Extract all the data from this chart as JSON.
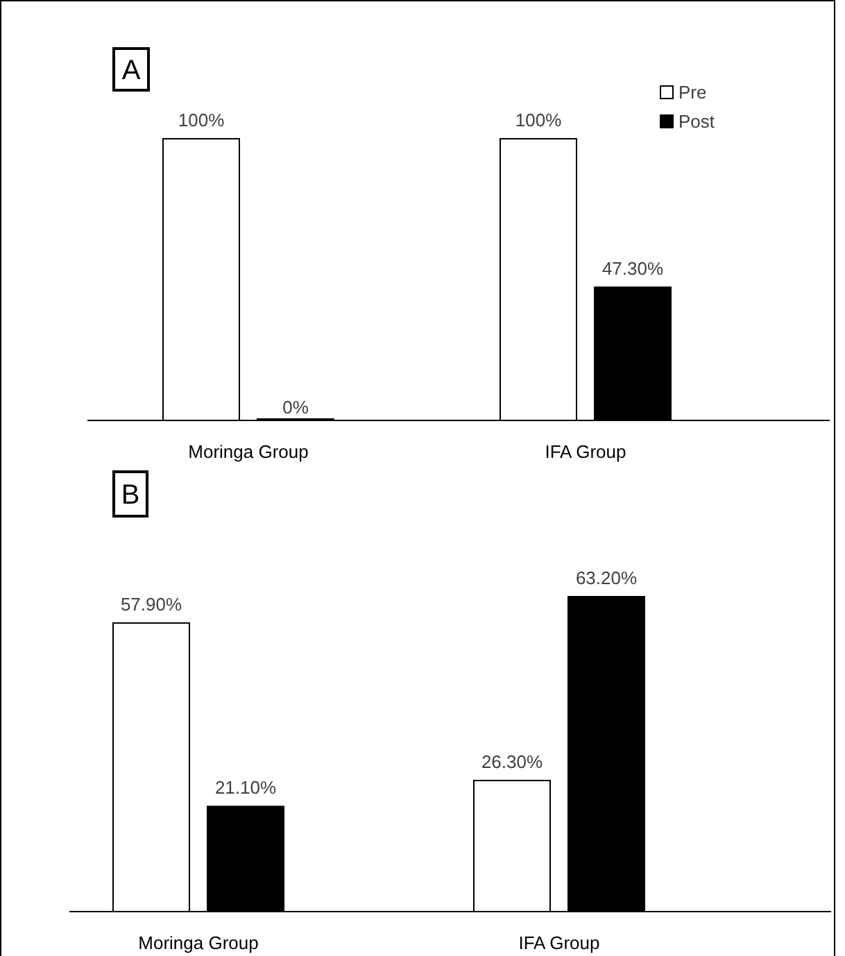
{
  "chart_data": [
    {
      "type": "bar",
      "title": "A",
      "categories": [
        "Moringa Group",
        "IFA Group"
      ],
      "legend": "top right",
      "series": [
        {
          "name": "Pre",
          "color": "#ffffff",
          "values": [
            100,
            100
          ],
          "value_labels": [
            "100%",
            "100%"
          ]
        },
        {
          "name": "Post",
          "color": "#000000",
          "values": [
            0,
            47.3
          ],
          "value_labels": [
            "0%",
            "47.30%"
          ]
        }
      ]
    },
    {
      "type": "bar",
      "title": "B",
      "categories": [
        "Moringa Group",
        "IFA Group"
      ],
      "series": [
        {
          "color": "#ffffff",
          "values": [
            57.9,
            26.3
          ],
          "value_labels": [
            "57.90%",
            "26.30%"
          ]
        },
        {
          "color": "#000000",
          "values": [
            21.1,
            63.2
          ],
          "value_labels": [
            "21.10%",
            "63.20%"
          ]
        }
      ]
    }
  ]
}
